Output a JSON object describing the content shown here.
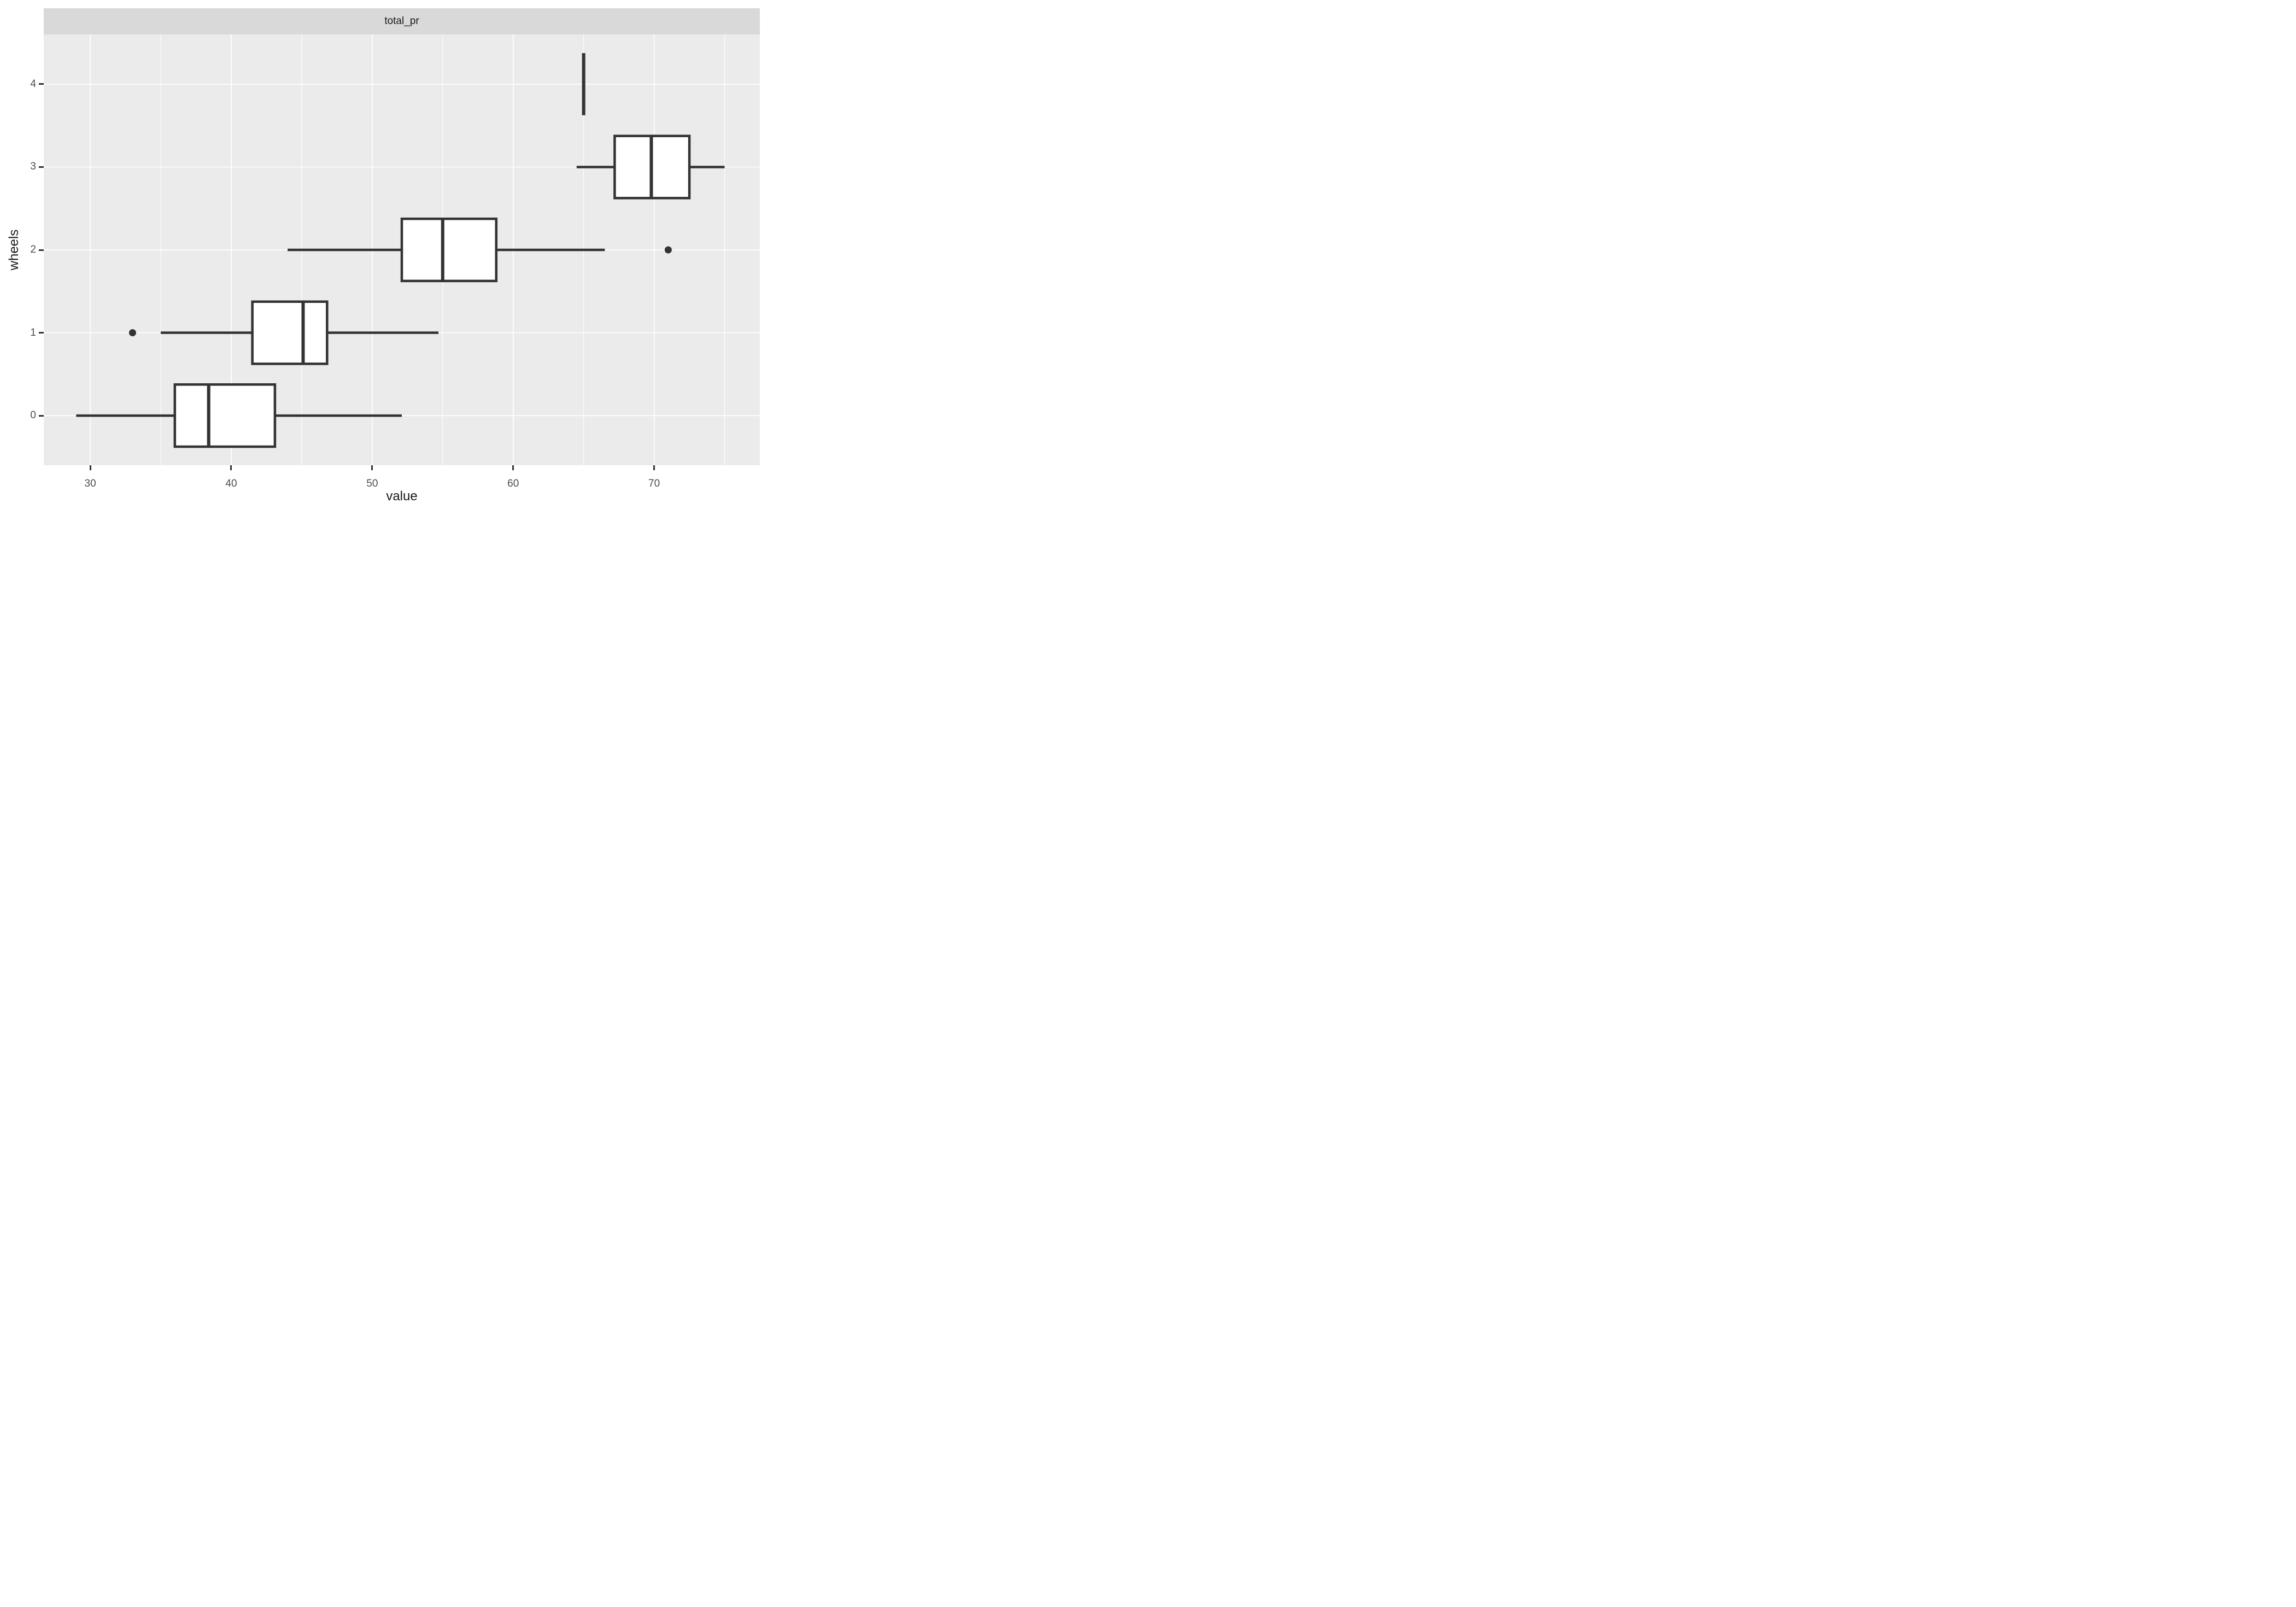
{
  "chart_data": {
    "type": "boxplot",
    "orientation": "horizontal",
    "facet_title": "total_pr",
    "xlabel": "value",
    "ylabel": "wheels",
    "xlim": [
      26.7,
      77.5
    ],
    "ylim": [
      -0.6,
      4.6
    ],
    "x_major_ticks": [
      30,
      40,
      50,
      60,
      70
    ],
    "x_minor_gridlines": [
      35,
      45,
      55,
      65,
      75
    ],
    "y_ticks": [
      0,
      1,
      2,
      3,
      4
    ],
    "box_width": 0.75,
    "grid": "on",
    "legend": "none",
    "series": [
      {
        "group": 0,
        "whisker_min": 29.0,
        "q1": 36.0,
        "median": 38.4,
        "q3": 43.1,
        "whisker_max": 52.1,
        "outliers": []
      },
      {
        "group": 1,
        "whisker_min": 35.0,
        "q1": 41.5,
        "median": 45.1,
        "q3": 46.8,
        "whisker_max": 54.7,
        "outliers": [
          33.0
        ]
      },
      {
        "group": 2,
        "whisker_min": 44.0,
        "q1": 52.1,
        "median": 55.0,
        "q3": 58.8,
        "whisker_max": 66.5,
        "outliers": [
          71.0
        ]
      },
      {
        "group": 3,
        "whisker_min": 64.5,
        "q1": 67.2,
        "median": 69.8,
        "q3": 72.5,
        "whisker_max": 75.0,
        "outliers": []
      },
      {
        "group": 4,
        "whisker_min": 65.0,
        "q1": 65.0,
        "median": 65.0,
        "q3": 65.0,
        "whisker_max": 65.0,
        "outliers": []
      }
    ],
    "colors": {
      "panel_bg": "#EBEBEB",
      "strip_bg": "#D9D9D9",
      "gridline": "#FFFFFF",
      "box_line": "#333333",
      "box_fill": "#FFFFFF",
      "outlier": "#333333",
      "axis_text": "#4D4D4D",
      "title_text": "#1A1A1A",
      "tick_mark": "#333333"
    }
  }
}
